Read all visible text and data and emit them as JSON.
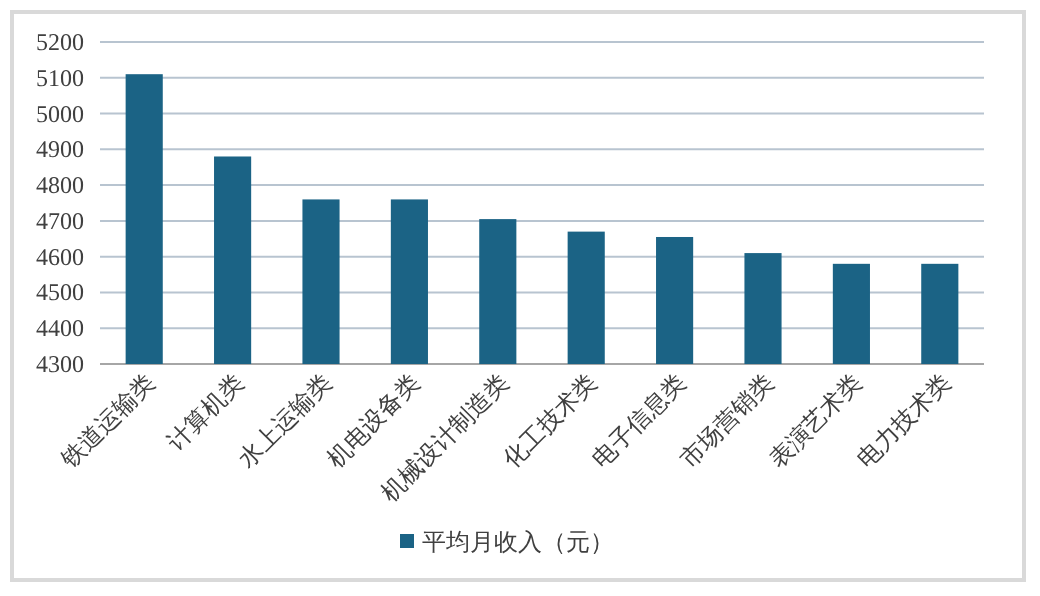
{
  "chart_data": {
    "type": "bar",
    "categories": [
      "铁道运输类",
      "计算机类",
      "水上运输类",
      "机电设备类",
      "机械设计制造类",
      "化工技术类",
      "电子信息类",
      "市场营销类",
      "表演艺术类",
      "电力技术类"
    ],
    "series": [
      {
        "name": "平均月收入（元）",
        "color": "#1b6385",
        "values": [
          5110,
          4880,
          4760,
          4760,
          4705,
          4670,
          4655,
          4610,
          4580,
          4580
        ]
      }
    ],
    "ylim": [
      4300,
      5200
    ],
    "yticks": [
      4300,
      4400,
      4500,
      4600,
      4700,
      4800,
      4900,
      5000,
      5100,
      5200
    ],
    "grid": "y",
    "legend": "bottom"
  }
}
